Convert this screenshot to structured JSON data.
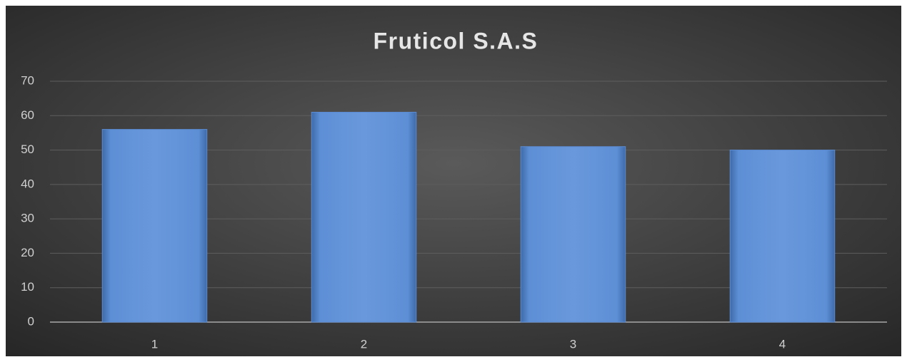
{
  "chart_data": {
    "type": "bar",
    "title": "Fruticol S.A.S",
    "categories": [
      "1",
      "2",
      "3",
      "4"
    ],
    "values": [
      56,
      61,
      51,
      50
    ],
    "color": "#5b8bd3",
    "ylim": [
      0,
      70
    ],
    "yticks": [
      0,
      10,
      20,
      30,
      40,
      50,
      60,
      70
    ],
    "grid": true
  }
}
